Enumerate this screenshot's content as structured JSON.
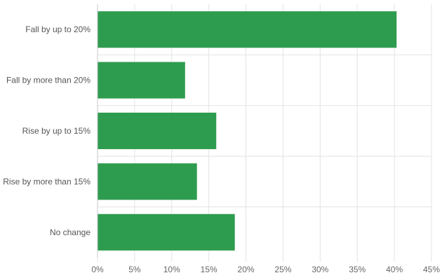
{
  "chart_data": {
    "type": "bar",
    "orientation": "horizontal",
    "title": "",
    "xlabel": "",
    "ylabel": "",
    "categories": [
      "Fall by up to 20%",
      "Fall by more than 20%",
      "Rise by up to 15%",
      "Rise by more than 15%",
      "No change"
    ],
    "values": [
      40.3,
      11.8,
      16.0,
      13.4,
      18.5
    ],
    "xlim": [
      0,
      45
    ],
    "x_ticks": [
      0,
      5,
      10,
      15,
      20,
      25,
      30,
      35,
      40,
      45
    ],
    "tick_labels": [
      "0%",
      "5%",
      "10%",
      "15%",
      "20%",
      "25%",
      "30%",
      "35%",
      "40%",
      "45%"
    ],
    "grid": true,
    "legend": "none",
    "bar_color": "#2e9c4e",
    "grid_color": "#e3e3e3"
  }
}
